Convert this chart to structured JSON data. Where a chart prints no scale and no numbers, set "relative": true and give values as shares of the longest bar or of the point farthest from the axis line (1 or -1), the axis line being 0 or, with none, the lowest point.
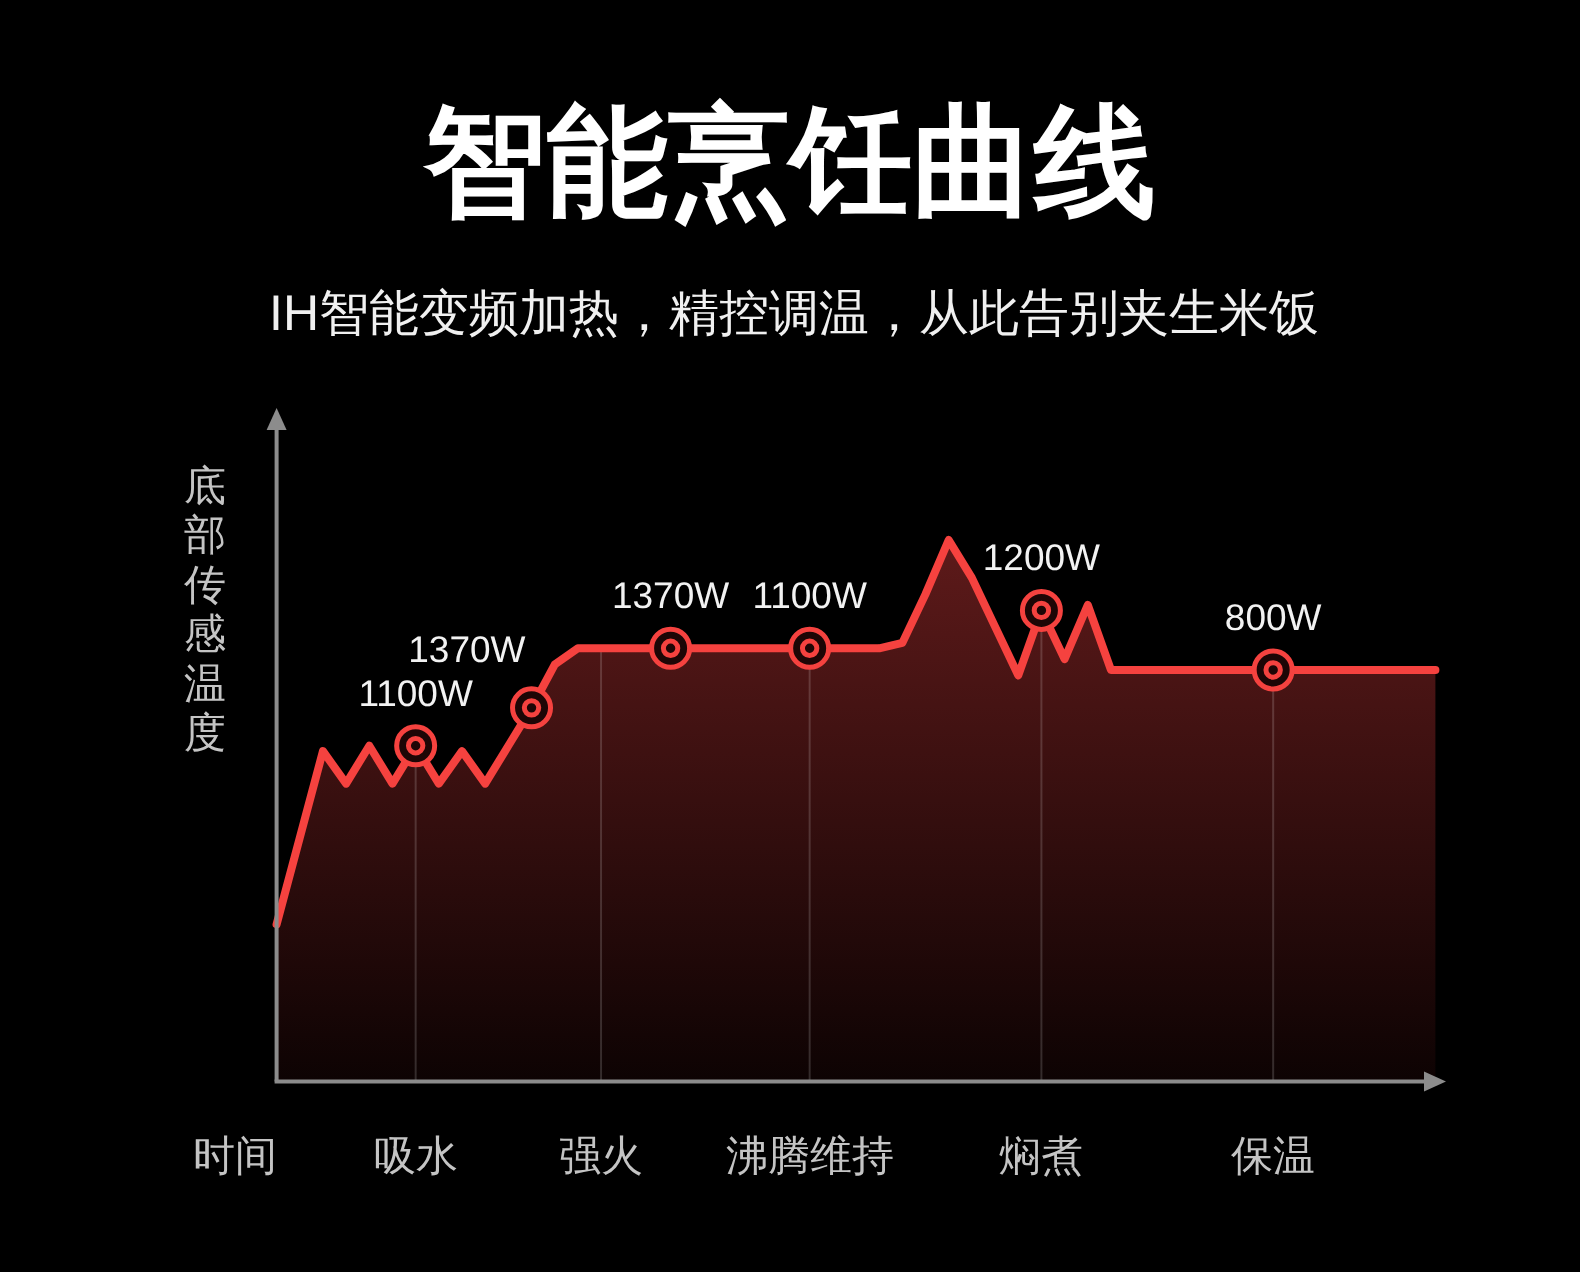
{
  "chart_data": {
    "type": "area",
    "title": "智能烹饪曲线",
    "subtitle": "IH智能变频加热，精控调温，从此告别夹生米饭",
    "xlabel": "时间",
    "ylabel": "底部传感温度",
    "relative": true,
    "grid": "x",
    "categories": [
      null,
      null,
      null,
      null,
      null,
      null,
      "吸水",
      null,
      null,
      null,
      null,
      null,
      null,
      null,
      "强火",
      null,
      null,
      null,
      null,
      null,
      null,
      null,
      null,
      "沸腾维持",
      null,
      null,
      null,
      null,
      null,
      null,
      null,
      null,
      null,
      "焖煮",
      null,
      null,
      null,
      null,
      null,
      null,
      null,
      null,
      null,
      "保温",
      null,
      null,
      null,
      null,
      null,
      null,
      null
    ],
    "series": [
      {
        "color": "#f5423f",
        "values": [
          0.29,
          0.45,
          0.61,
          0.55,
          0.62,
          0.55,
          0.62,
          0.55,
          0.61,
          0.55,
          0.62,
          0.69,
          0.77,
          0.8,
          0.8,
          0.8,
          0.8,
          0.8,
          0.8,
          0.8,
          0.8,
          0.8,
          0.8,
          0.8,
          0.8,
          0.8,
          0.8,
          0.81,
          0.9,
          1,
          0.93,
          0.84,
          0.75,
          0.87,
          0.78,
          0.88,
          0.76,
          0.76,
          0.76,
          0.76,
          0.76,
          0.76,
          0.76,
          0.76,
          0.76,
          0.76,
          0.76,
          0.76,
          0.76,
          0.76,
          0.76
        ]
      },
      {
        "type": "scatter",
        "color": "#f5423f",
        "marker": "circle",
        "values": [
          null,
          null,
          null,
          null,
          null,
          null,
          0.62,
          null,
          null,
          null,
          null,
          0.69,
          null,
          null,
          null,
          null,
          null,
          0.8,
          null,
          null,
          null,
          null,
          null,
          0.8,
          null,
          null,
          null,
          null,
          null,
          null,
          null,
          null,
          null,
          0.87,
          null,
          null,
          null,
          null,
          null,
          null,
          null,
          null,
          null,
          0.76,
          null,
          null,
          null,
          null,
          null,
          null,
          null
        ]
      }
    ],
    "annotations": [
      "1100W",
      "1370W",
      "1370W",
      "1100W",
      "1200W",
      "800W"
    ]
  }
}
